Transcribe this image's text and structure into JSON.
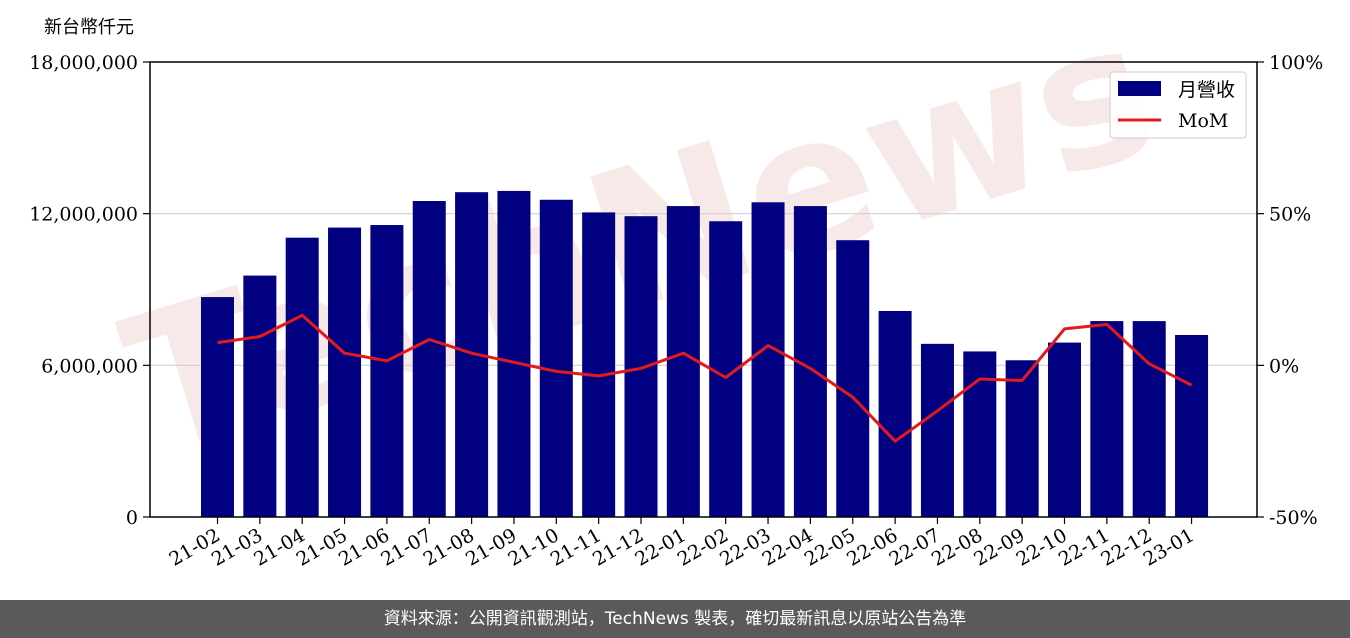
{
  "watermark": "TechNews",
  "unit_label": "新台幣仟元",
  "footer": "資料來源：公開資訊觀測站，TechNews 製表，確切最新訊息以原站公告為準",
  "colors": {
    "bar": "#000080",
    "line": "#e31a1c",
    "grid": "#d0d0d0",
    "footer_bg": "#5a5a5a"
  },
  "chart_data": {
    "type": "bar",
    "categories": [
      "21-02",
      "21-03",
      "21-04",
      "21-05",
      "21-06",
      "21-07",
      "21-08",
      "21-09",
      "21-10",
      "21-11",
      "21-12",
      "22-01",
      "22-02",
      "22-03",
      "22-04",
      "22-05",
      "22-06",
      "22-07",
      "22-08",
      "22-09",
      "22-10",
      "22-11",
      "22-12",
      "23-01"
    ],
    "series": [
      {
        "name": "月營收",
        "type": "bar",
        "axis": "left",
        "values": [
          8700000,
          9550000,
          11050000,
          11450000,
          11550000,
          12500000,
          12850000,
          12900000,
          12550000,
          12050000,
          11900000,
          12300000,
          11700000,
          12450000,
          12300000,
          10950000,
          8150000,
          6850000,
          6550000,
          6200000,
          6900000,
          7750000,
          7750000,
          7200000
        ]
      },
      {
        "name": "MoM",
        "type": "line",
        "axis": "right",
        "unit": "%",
        "values": [
          7.5,
          9.5,
          16.5,
          4,
          1.5,
          8.5,
          4,
          1,
          -2,
          -3.5,
          -1,
          4,
          -4,
          6.5,
          -1,
          -10.5,
          -25,
          -15,
          -4.5,
          -5,
          12,
          13.5,
          0.5,
          -6.5
        ]
      }
    ],
    "y_left": {
      "range": [
        0,
        18000000
      ],
      "ticks": [
        "0",
        "6,000,000",
        "12,000,000",
        "18,000,000"
      ],
      "tick_values": [
        0,
        6000000,
        12000000,
        18000000
      ]
    },
    "y_right": {
      "range": [
        -50,
        100
      ],
      "ticks": [
        "-50%",
        "0%",
        "50%",
        "100%"
      ],
      "tick_values": [
        -50,
        0,
        50,
        100
      ]
    },
    "grid": "horizontal",
    "legend_position": "top-right"
  }
}
